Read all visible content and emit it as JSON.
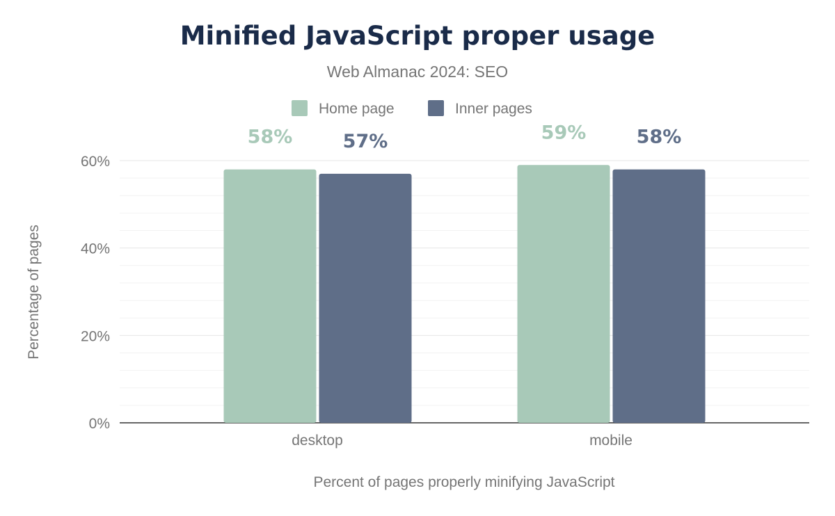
{
  "chart_data": {
    "type": "bar",
    "title": "Minified JavaScript proper usage",
    "subtitle": "Web Almanac 2024: SEO",
    "categories": [
      "desktop",
      "mobile"
    ],
    "series": [
      {
        "name": "Home page",
        "values": [
          58,
          59
        ],
        "labels": [
          "58%",
          "59%"
        ],
        "color": "#a8c9b8"
      },
      {
        "name": "Inner pages",
        "values": [
          57,
          58
        ],
        "labels": [
          "57%",
          "58%"
        ],
        "color": "#5f6e88"
      }
    ],
    "xlabel": "Percent of pages properly minifying JavaScript",
    "ylabel": "Percentage of pages",
    "ylim": [
      0,
      60
    ],
    "yticks": [
      "0%",
      "20%",
      "40%",
      "60%"
    ],
    "grid": true,
    "legend": "top-center"
  }
}
